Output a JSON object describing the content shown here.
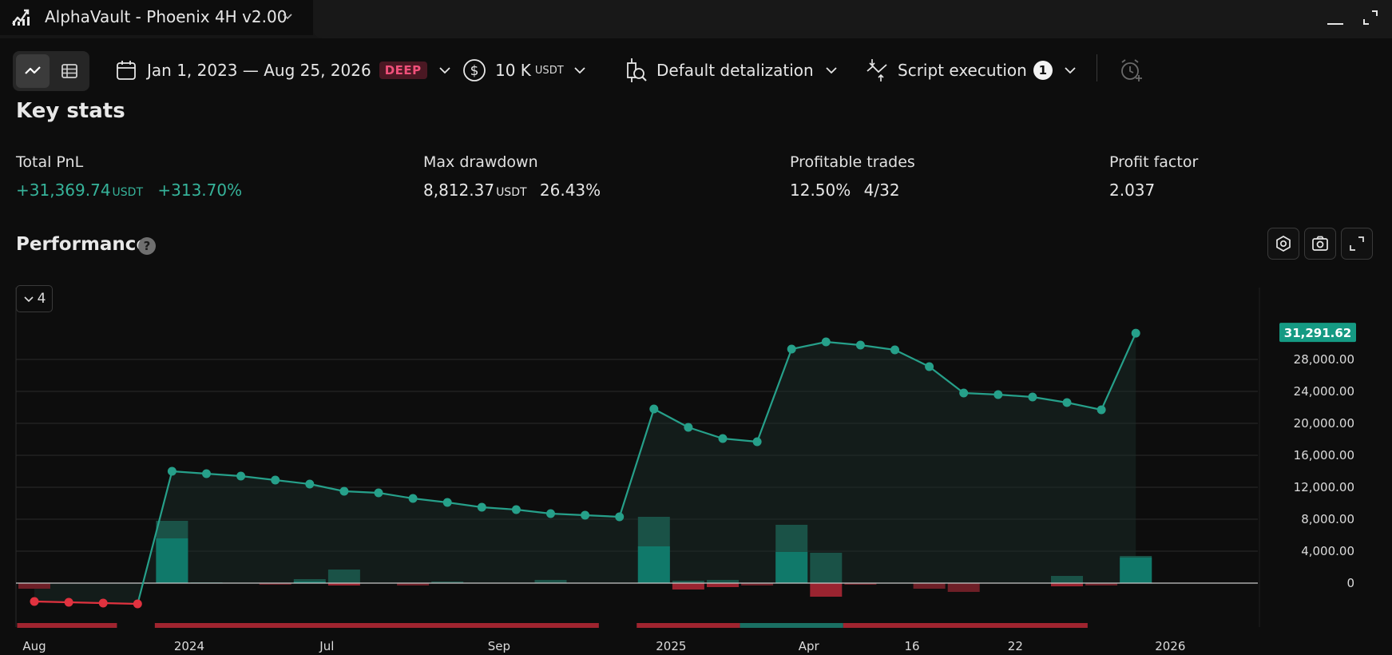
{
  "window": {
    "title": "AlphaVault - Phoenix 4H v2.00"
  },
  "toolbar": {
    "date_range": "Jan 1, 2023 — Aug 25, 2026",
    "date_badge": "DEEP",
    "capital_value": "10 K",
    "capital_unit": "USDT",
    "detalization": "Default detalization",
    "script_execution": "Script execution",
    "script_count": "1"
  },
  "key_stats": {
    "title": "Key stats",
    "total_pnl": {
      "label": "Total PnL",
      "value": "+31,369.74",
      "unit": "USDT",
      "percent": "+313.70%"
    },
    "max_drawdown": {
      "label": "Max drawdown",
      "value": "8,812.37",
      "unit": "USDT",
      "percent": "26.43%"
    },
    "profitable_trades": {
      "label": "Profitable trades",
      "percent": "12.50%",
      "ratio": "4/32"
    },
    "profit_factor": {
      "label": "Profit factor",
      "value": "2.037"
    }
  },
  "performance": {
    "title": "Performance",
    "collapse_count": "4",
    "last_value_label": "31,291.62"
  },
  "colors": {
    "positive": "#26a08a",
    "negative": "#e0323f",
    "accent": "#36b39a"
  },
  "chart_data": {
    "type": "line",
    "x_ticks": [
      "Aug",
      "2024",
      "Jul",
      "Sep",
      "2025",
      "Apr",
      "16",
      "22",
      "2026"
    ],
    "y_ticks": [
      "28,000.00",
      "24,000.00",
      "20,000.00",
      "16,000.00",
      "12,000.00",
      "8,000.00",
      "4,000.00",
      "0"
    ],
    "ylim": [
      -2800,
      32500
    ],
    "equity_series": [
      -2300,
      -2400,
      -2500,
      -2600,
      14000,
      13700,
      13400,
      12900,
      12400,
      11500,
      11300,
      10600,
      10100,
      9500,
      9200,
      8700,
      8500,
      8300,
      21800,
      19500,
      18100,
      17700,
      29300,
      30200,
      29800,
      29200,
      27100,
      23800,
      23600,
      23300,
      22600,
      21700,
      31291.62
    ],
    "bars": [
      {
        "x": 1,
        "dark": -700,
        "light": 0
      },
      {
        "x": 5,
        "dark": 7800,
        "light": 5600
      },
      {
        "x": 6,
        "dark": 100,
        "light": 0
      },
      {
        "x": 8,
        "dark": -200,
        "light": 0
      },
      {
        "x": 9,
        "dark": 500,
        "light": 200
      },
      {
        "x": 10,
        "dark": 1700,
        "light": -300
      },
      {
        "x": 12,
        "dark": -300,
        "light": 0
      },
      {
        "x": 13,
        "dark": 200,
        "light": 0
      },
      {
        "x": 16,
        "dark": 400,
        "light": 0
      },
      {
        "x": 19,
        "dark": 8300,
        "light": 4600
      },
      {
        "x": 20,
        "dark": 300,
        "light": -800
      },
      {
        "x": 21,
        "dark": 400,
        "light": -500
      },
      {
        "x": 22,
        "dark": -300,
        "light": 0
      },
      {
        "x": 23,
        "dark": 7300,
        "light": 3900
      },
      {
        "x": 24,
        "dark": 3800,
        "light": -1700
      },
      {
        "x": 25,
        "dark": -200,
        "light": 0
      },
      {
        "x": 27,
        "dark": -700,
        "light": 0
      },
      {
        "x": 28,
        "dark": -1100,
        "light": 0
      },
      {
        "x": 31,
        "dark": 900,
        "light": -400
      },
      {
        "x": 32,
        "dark": -300,
        "light": 0
      },
      {
        "x": 33,
        "dark": 3400,
        "light": 3200
      }
    ],
    "trade_ranges": [
      {
        "from": 0.5,
        "to": 3.4,
        "type": "red"
      },
      {
        "from": 4.5,
        "to": 17.4,
        "type": "red"
      },
      {
        "from": 18.5,
        "to": 21.5,
        "type": "red"
      },
      {
        "from": 21.5,
        "to": 24.5,
        "type": "teal"
      },
      {
        "from": 24.5,
        "to": 31.6,
        "type": "red"
      }
    ]
  }
}
